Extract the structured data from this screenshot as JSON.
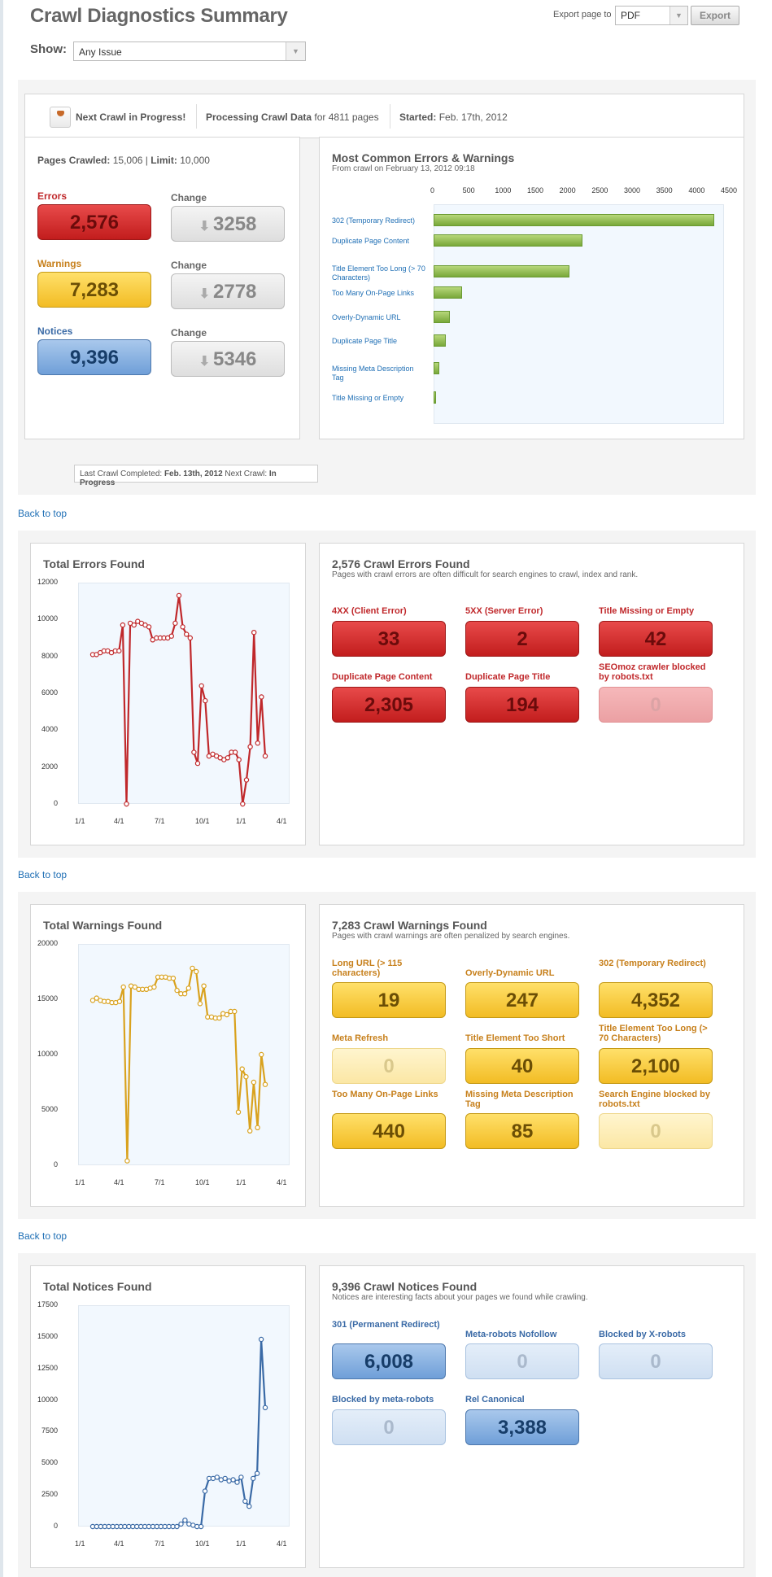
{
  "header": {
    "title": "Crawl Diagnostics Summary",
    "export_label": "Export page to",
    "export_format": "PDF",
    "export_button": "Export",
    "show_label": "Show:",
    "show_value": "Any Issue"
  },
  "status": {
    "next_crawl": "Next Crawl in Progress!",
    "processing_label": "Processing Crawl Data",
    "processing_detail": "for 4811 pages",
    "started_label": "Started:",
    "started_value": "Feb. 17th, 2012"
  },
  "summary": {
    "pages_crawled_label": "Pages Crawled:",
    "pages_crawled_value": "15,006",
    "limit_label": "Limit:",
    "limit_value": "10,000",
    "errors_label": "Errors",
    "errors_value": "2,576",
    "warnings_label": "Warnings",
    "warnings_value": "7,283",
    "notices_label": "Notices",
    "notices_value": "9,396",
    "change_label": "Change",
    "errors_change": "3258",
    "warnings_change": "2778",
    "notices_change": "5346",
    "last_crawl_label": "Last Crawl Completed:",
    "last_crawl_value": "Feb. 13th, 2012",
    "next_crawl_label": "Next Crawl:",
    "next_crawl_value": "In Progress"
  },
  "common": {
    "title": "Most Common Errors & Warnings",
    "subtitle": "From crawl on February 13, 2012 09:18"
  },
  "errors_section": {
    "chart_title": "Total Errors Found",
    "title": "2,576 Crawl Errors Found",
    "subtitle": "Pages with crawl errors are often difficult for search engines to crawl, index and rank.",
    "items": [
      {
        "label": "4XX (Client Error)",
        "value": "33"
      },
      {
        "label": "5XX (Server Error)",
        "value": "2"
      },
      {
        "label": "Title Missing or Empty",
        "value": "42"
      },
      {
        "label": "Duplicate Page Content",
        "value": "2,305"
      },
      {
        "label": "Duplicate Page Title",
        "value": "194"
      },
      {
        "label": "SEOmoz crawler blocked by robots.txt",
        "value": "0"
      }
    ]
  },
  "warnings_section": {
    "chart_title": "Total Warnings Found",
    "title": "7,283 Crawl Warnings Found",
    "subtitle": "Pages with crawl warnings are often penalized by search engines.",
    "items": [
      {
        "label": "Long URL (> 115 characters)",
        "value": "19"
      },
      {
        "label": "Overly-Dynamic URL",
        "value": "247"
      },
      {
        "label": "302 (Temporary Redirect)",
        "value": "4,352"
      },
      {
        "label": "Meta Refresh",
        "value": "0"
      },
      {
        "label": "Title Element Too Short",
        "value": "40"
      },
      {
        "label": "Title Element Too Long (> 70 Characters)",
        "value": "2,100"
      },
      {
        "label": "Too Many On-Page Links",
        "value": "440"
      },
      {
        "label": "Missing Meta Description Tag",
        "value": "85"
      },
      {
        "label": "Search Engine blocked by robots.txt",
        "value": "0"
      }
    ]
  },
  "notices_section": {
    "chart_title": "Total Notices Found",
    "title": "9,396 Crawl Notices Found",
    "subtitle": "Notices are interesting facts about your pages we found while crawling.",
    "items": [
      {
        "label": "301 (Permanent Redirect)",
        "value": "6,008"
      },
      {
        "label": "Meta-robots Nofollow",
        "value": "0"
      },
      {
        "label": "Blocked by X-robots",
        "value": "0"
      },
      {
        "label": "Blocked by meta-robots",
        "value": "0"
      },
      {
        "label": "Rel Canonical",
        "value": "3,388"
      }
    ]
  },
  "back_to_top": "Back to top",
  "colors": {
    "error": "#c0282b",
    "warning": "#d9a21e",
    "notice": "#3a6aa6",
    "bar": "#8fbb4b",
    "link": "#1f6fb5"
  },
  "chart_data": [
    {
      "type": "bar",
      "title": "Most Common Errors & Warnings",
      "orientation": "horizontal",
      "categories": [
        "302 (Temporary Redirect)",
        "Duplicate Page Content",
        "Title Element Too Long (> 70 Characters)",
        "Too Many On-Page Links",
        "Overly-Dynamic URL",
        "Duplicate Page Title",
        "Missing Meta Description Tag",
        "Title Missing or Empty"
      ],
      "values": [
        4352,
        2305,
        2100,
        440,
        247,
        194,
        85,
        42
      ],
      "xticks": [
        "0",
        "500",
        "1000",
        "1500",
        "2000",
        "2500",
        "3000",
        "3500",
        "4000",
        "4500"
      ],
      "xlim": [
        0,
        4500
      ]
    },
    {
      "type": "line",
      "title": "Total Errors Found",
      "xticks": [
        "1/1",
        "4/1",
        "7/1",
        "10/1",
        "1/1",
        "4/1"
      ],
      "yticks": [
        "12000",
        "10000",
        "8000",
        "6000",
        "4000",
        "2000",
        "0"
      ],
      "ylim": [
        0,
        12000
      ],
      "color": "#c0282b",
      "values": [
        8100,
        8100,
        8200,
        8300,
        8300,
        8200,
        8300,
        8300,
        9700,
        0,
        9800,
        9700,
        9900,
        9800,
        9700,
        9600,
        8900,
        9000,
        9000,
        9000,
        9000,
        9100,
        9800,
        11300,
        9600,
        9200,
        9000,
        2800,
        2200,
        6400,
        5600,
        2600,
        2700,
        2600,
        2500,
        2400,
        2500,
        2800,
        2800,
        2400,
        0,
        1300,
        3100,
        9300,
        3300,
        5800,
        2600
      ]
    },
    {
      "type": "line",
      "title": "Total Warnings Found",
      "xticks": [
        "1/1",
        "4/1",
        "7/1",
        "10/1",
        "1/1",
        "4/1"
      ],
      "yticks": [
        "20000",
        "15000",
        "10000",
        "5000",
        "0"
      ],
      "ylim": [
        0,
        20000
      ],
      "color": "#d9a21e",
      "values": [
        14900,
        15100,
        14900,
        14800,
        14800,
        14700,
        14700,
        14800,
        16100,
        400,
        16200,
        16100,
        15900,
        15900,
        15900,
        16000,
        16100,
        17000,
        17000,
        17000,
        16900,
        16900,
        15800,
        15500,
        15500,
        16000,
        17800,
        17500,
        14600,
        16200,
        13400,
        13400,
        13300,
        13300,
        13700,
        13600,
        13900,
        13900,
        4800,
        8700,
        8000,
        3100,
        7500,
        3400,
        10000,
        7300
      ]
    },
    {
      "type": "line",
      "title": "Total Notices Found",
      "xticks": [
        "1/1",
        "4/1",
        "7/1",
        "10/1",
        "1/1",
        "4/1"
      ],
      "yticks": [
        "17500",
        "15000",
        "12500",
        "10000",
        "7500",
        "5000",
        "2500",
        "0"
      ],
      "ylim": [
        0,
        17500
      ],
      "color": "#3a6aa6",
      "values": [
        0,
        0,
        0,
        0,
        0,
        0,
        0,
        0,
        0,
        0,
        0,
        0,
        0,
        0,
        0,
        0,
        0,
        0,
        0,
        0,
        0,
        0,
        200,
        500,
        200,
        100,
        0,
        0,
        2800,
        3800,
        3800,
        3900,
        3700,
        3800,
        3600,
        3700,
        3500,
        3900,
        2000,
        1600,
        3800,
        4200,
        14800,
        9400
      ]
    }
  ]
}
